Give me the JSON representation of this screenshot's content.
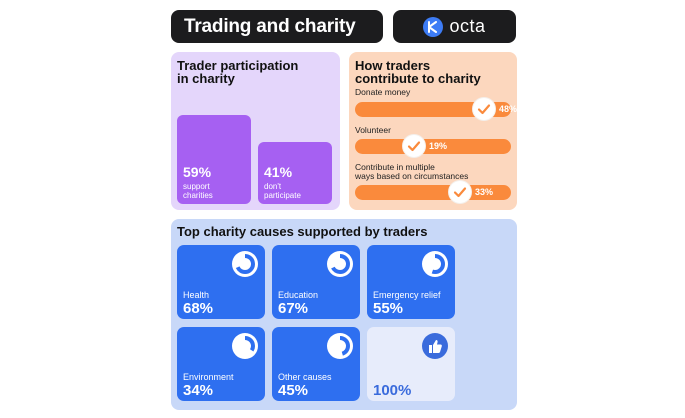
{
  "header": {
    "title": "Trading and charity",
    "logo_text": "octa"
  },
  "participation": {
    "title_line1": "Trader participation",
    "title_line2": "in charity",
    "bars": [
      {
        "value": "59%",
        "label_line1": "support",
        "label_line2": "charities"
      },
      {
        "value": "41%",
        "label_line1": "don't",
        "label_line2": "participate"
      }
    ]
  },
  "contribution": {
    "title_line1": "How traders",
    "title_line2": "contribute to charity",
    "rows": [
      {
        "label_line1": "Donate money",
        "label_line2": "",
        "value": "48%"
      },
      {
        "label_line1": "Volunteer",
        "label_line2": "",
        "value": "19%"
      },
      {
        "label_line1": "Contribute in multiple",
        "label_line2": "ways based on circumstances",
        "value": "33%"
      }
    ]
  },
  "causes": {
    "title": "Top charity causes supported by traders",
    "tiles": [
      {
        "label": "Health",
        "value": "68%"
      },
      {
        "label": "Education",
        "value": "67%"
      },
      {
        "label": "Emergency relief",
        "value": "55%"
      },
      {
        "label": "Environment",
        "value": "34%"
      },
      {
        "label": "Other causes",
        "value": "45%"
      },
      {
        "label": "",
        "value": "100%"
      }
    ]
  },
  "colors": {
    "purple_bar": "#a660f2",
    "orange_track": "#fa8a3c",
    "blue_tile": "#2e6ff0"
  },
  "chart_data": [
    {
      "type": "bar",
      "title": "Trader participation in charity",
      "categories": [
        "support charities",
        "don't participate"
      ],
      "values": [
        59,
        41
      ],
      "ylim": [
        0,
        100
      ]
    },
    {
      "type": "bar",
      "title": "How traders contribute to charity",
      "categories": [
        "Donate money",
        "Volunteer",
        "Contribute in multiple ways based on circumstances"
      ],
      "values": [
        48,
        19,
        33
      ],
      "orientation": "horizontal"
    },
    {
      "type": "pie",
      "title": "Top charity causes supported by traders",
      "categories": [
        "Health",
        "Education",
        "Emergency relief",
        "Environment",
        "Other causes"
      ],
      "values": [
        68,
        67,
        55,
        34,
        45
      ]
    }
  ]
}
